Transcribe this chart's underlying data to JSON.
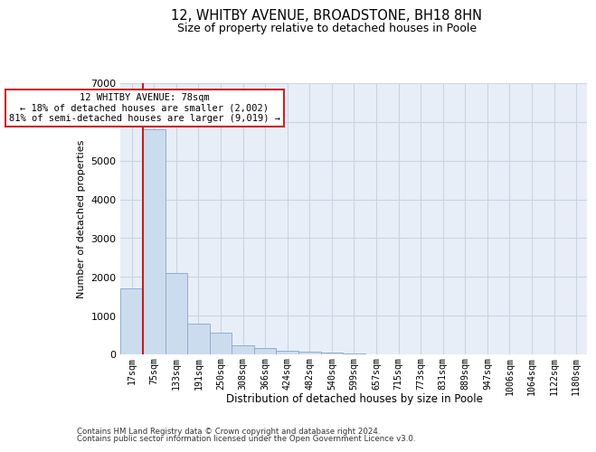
{
  "title": "12, WHITBY AVENUE, BROADSTONE, BH18 8HN",
  "subtitle": "Size of property relative to detached houses in Poole",
  "xlabel": "Distribution of detached houses by size in Poole",
  "ylabel": "Number of detached properties",
  "bar_labels": [
    "17sqm",
    "75sqm",
    "133sqm",
    "191sqm",
    "250sqm",
    "308sqm",
    "366sqm",
    "424sqm",
    "482sqm",
    "540sqm",
    "599sqm",
    "657sqm",
    "715sqm",
    "773sqm",
    "831sqm",
    "889sqm",
    "947sqm",
    "1006sqm",
    "1064sqm",
    "1122sqm",
    "1180sqm"
  ],
  "bar_values": [
    1700,
    5800,
    2100,
    800,
    550,
    225,
    175,
    100,
    75,
    50,
    20,
    10,
    5,
    2,
    1,
    1,
    0,
    0,
    0,
    0,
    0
  ],
  "bar_color": "#ccdcef",
  "bar_edge_color": "#90aece",
  "grid_color": "#c8d4e4",
  "background_color": "#e8eef8",
  "annotation_line1": "12 WHITBY AVENUE: 78sqm",
  "annotation_line2": "← 18% of detached houses are smaller (2,002)",
  "annotation_line3": "81% of semi-detached houses are larger (9,019) →",
  "annotation_box_color": "#ffffff",
  "annotation_border_color": "#cc2222",
  "ylim_max": 7000,
  "red_line_color": "#bb2222",
  "footnote1": "Contains HM Land Registry data © Crown copyright and database right 2024.",
  "footnote2": "Contains public sector information licensed under the Open Government Licence v3.0."
}
